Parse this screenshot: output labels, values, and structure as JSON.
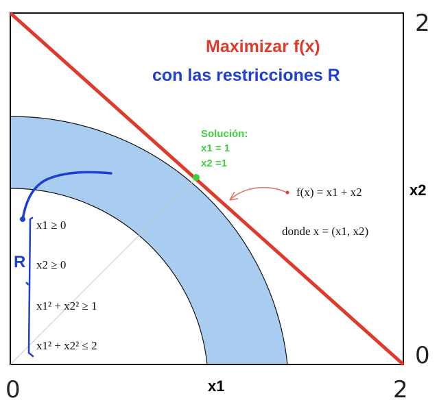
{
  "title": {
    "line1": "Maximizar f(x)",
    "line2": "con las restricciones R"
  },
  "axes": {
    "x_label": "x1",
    "y_label": "x2",
    "x_ticks": [
      "0",
      "2"
    ],
    "y_ticks": [
      "0",
      "2"
    ],
    "range": [
      0,
      2
    ]
  },
  "solution": {
    "heading": "Solución:",
    "x1": "x1 = 1",
    "x2": "x2 =1"
  },
  "objective": {
    "text": "f(x) = x1 + x2",
    "where": "donde x = (x1, x2)"
  },
  "constraints": {
    "label": "R",
    "c1": "x1 ≥ 0",
    "c2": "x2 ≥ 0",
    "c3": "x1² + x2² ≥ 1",
    "c4": "x1² + x2² ≤ 2"
  },
  "colors": {
    "objective_line": "#dd3b2e",
    "feasible_region": "#a9cdf0",
    "solution_point": "#3fd13f",
    "constraints_bracket": "#1e3fd0"
  }
}
